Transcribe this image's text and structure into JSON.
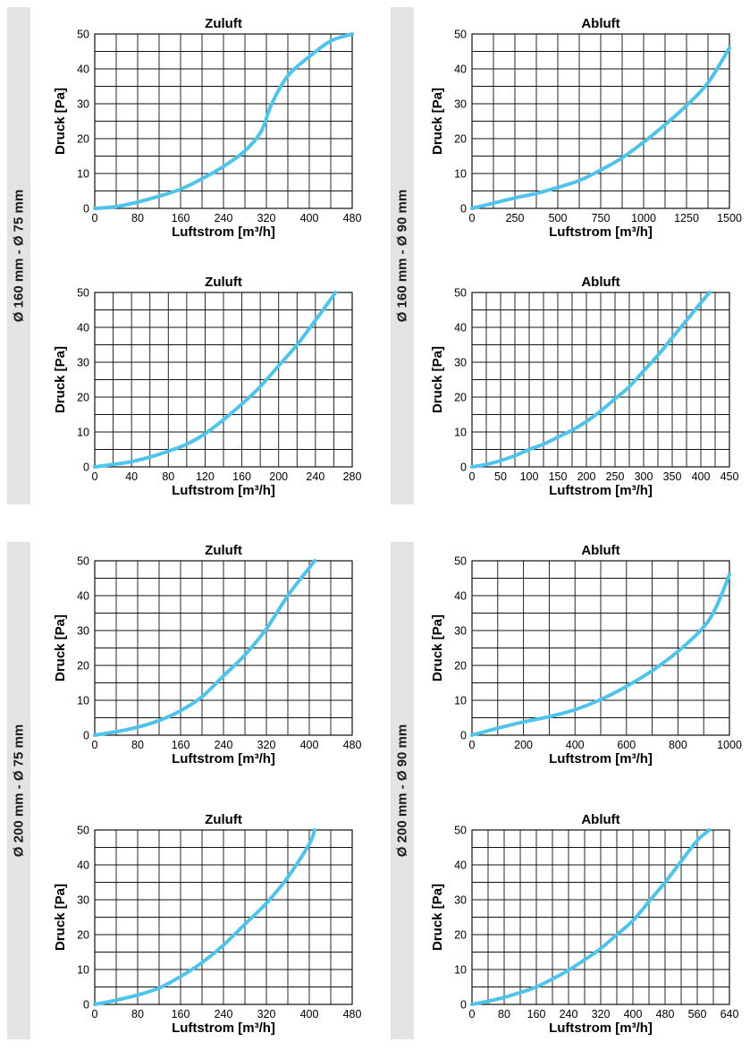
{
  "colors": {
    "curve": "#4fc3ea",
    "band": "#e3e3e5",
    "grid": "#111111"
  },
  "groups": [
    {
      "label": "Ø 160 mm - Ø 75 mm"
    },
    {
      "label": "Ø 160 mm - Ø 90 mm"
    },
    {
      "label": "Ø 200 mm - Ø 75 mm"
    },
    {
      "label": "Ø 200 mm - Ø 90 mm"
    }
  ],
  "chart_data": [
    {
      "type": "line",
      "title": "Zuluft",
      "xlabel": "Luftstrom [m³/h]",
      "ylabel": "Druck [Pa]",
      "xlim": [
        0,
        480
      ],
      "ylim": [
        0,
        50
      ],
      "grid": true,
      "xticks": [
        0,
        80,
        160,
        240,
        320,
        400,
        480
      ],
      "yticks": [
        0,
        10,
        20,
        30,
        40,
        50
      ],
      "x": [
        0,
        40,
        80,
        120,
        160,
        200,
        240,
        280,
        310,
        330,
        360,
        400,
        440,
        480
      ],
      "y": [
        0,
        0.5,
        1.8,
        3.5,
        5.5,
        8.5,
        12,
        16.5,
        22,
        30,
        38,
        43.5,
        48,
        50
      ]
    },
    {
      "type": "line",
      "title": "Abluft",
      "xlabel": "Luftstrom [m³/h]",
      "ylabel": "Druck [Pa]",
      "xlim": [
        0,
        1500
      ],
      "ylim": [
        0,
        50
      ],
      "grid": true,
      "xticks": [
        0,
        250,
        500,
        750,
        1000,
        1250,
        1500
      ],
      "yticks": [
        0,
        10,
        20,
        30,
        40,
        50
      ],
      "x": [
        0,
        125,
        250,
        375,
        500,
        625,
        750,
        875,
        1000,
        1125,
        1250,
        1375,
        1500
      ],
      "y": [
        0,
        1.5,
        3,
        4.3,
        6,
        8,
        11,
        14.5,
        19,
        24,
        29.5,
        36,
        46
      ]
    },
    {
      "type": "line",
      "title": "Zuluft",
      "xlabel": "Luftstrom [m³/h]",
      "ylabel": "Druck [Pa]",
      "xlim": [
        0,
        280
      ],
      "ylim": [
        0,
        50
      ],
      "grid": true,
      "xticks": [
        0,
        40,
        80,
        120,
        160,
        200,
        240,
        280
      ],
      "yticks": [
        0,
        10,
        20,
        30,
        40,
        50
      ],
      "x": [
        0,
        20,
        40,
        60,
        80,
        100,
        120,
        140,
        160,
        180,
        200,
        220,
        240,
        262
      ],
      "y": [
        0,
        0.7,
        1.5,
        2.8,
        4.5,
        6.5,
        9.5,
        13.5,
        18,
        23,
        29,
        35,
        42,
        50
      ]
    },
    {
      "type": "line",
      "title": "Abluft",
      "xlabel": "Luftstrom [m³/h]",
      "ylabel": "Druck [Pa]",
      "xlim": [
        0,
        450
      ],
      "ylim": [
        0,
        50
      ],
      "grid": true,
      "xticks": [
        0,
        50,
        100,
        150,
        200,
        250,
        300,
        350,
        400,
        450
      ],
      "yticks": [
        0,
        10,
        20,
        30,
        40,
        50
      ],
      "x": [
        0,
        25,
        50,
        75,
        100,
        125,
        150,
        175,
        200,
        225,
        250,
        275,
        300,
        325,
        350,
        375,
        400,
        415
      ],
      "y": [
        0,
        0.7,
        1.8,
        3.2,
        5,
        6.5,
        8.5,
        10.5,
        13,
        16,
        19.5,
        23,
        27.5,
        32,
        37,
        42,
        47,
        50
      ]
    },
    {
      "type": "line",
      "title": "Zuluft",
      "xlabel": "Luftstrom [m³/h]",
      "ylabel": "Druck [Pa]",
      "xlim": [
        0,
        480
      ],
      "ylim": [
        0,
        50
      ],
      "grid": true,
      "xticks": [
        0,
        80,
        160,
        240,
        320,
        400,
        480
      ],
      "yticks": [
        0,
        10,
        20,
        30,
        40,
        50
      ],
      "x": [
        0,
        40,
        80,
        120,
        160,
        200,
        240,
        280,
        320,
        360,
        400,
        410
      ],
      "y": [
        0,
        1,
        2.3,
        4.2,
        7,
        11,
        17,
        23,
        30.5,
        40,
        48,
        50
      ]
    },
    {
      "type": "line",
      "title": "Abluft",
      "xlabel": "Luftstrom [m³/h]",
      "ylabel": "Druck [Pa]",
      "xlim": [
        0,
        1000
      ],
      "ylim": [
        0,
        50
      ],
      "grid": true,
      "xticks": [
        0,
        200,
        400,
        600,
        800,
        1000
      ],
      "yticks": [
        0,
        10,
        20,
        30,
        40,
        50
      ],
      "x": [
        0,
        100,
        200,
        300,
        400,
        500,
        600,
        700,
        800,
        900,
        950,
        1000
      ],
      "y": [
        0,
        2,
        3.8,
        5.3,
        7.3,
        10.2,
        14,
        18.5,
        24,
        31,
        37,
        46
      ]
    },
    {
      "type": "line",
      "title": "Zuluft",
      "xlabel": "Luftstrom [m³/h]",
      "ylabel": "Druck [Pa]",
      "xlim": [
        0,
        480
      ],
      "ylim": [
        0,
        50
      ],
      "grid": true,
      "xticks": [
        0,
        80,
        160,
        240,
        320,
        400,
        480
      ],
      "yticks": [
        0,
        10,
        20,
        30,
        40,
        50
      ],
      "x": [
        0,
        40,
        80,
        120,
        160,
        200,
        240,
        280,
        320,
        360,
        400,
        410
      ],
      "y": [
        0,
        1.2,
        2.7,
        4.7,
        8,
        12,
        17,
        23,
        29,
        36.5,
        46,
        50
      ]
    },
    {
      "type": "line",
      "title": "Abluft",
      "xlabel": "Luftstrom [m³/h]",
      "ylabel": "Druck [Pa]",
      "xlim": [
        0,
        640
      ],
      "ylim": [
        0,
        50
      ],
      "grid": true,
      "xticks": [
        0,
        80,
        160,
        240,
        320,
        400,
        480,
        560,
        640
      ],
      "yticks": [
        0,
        10,
        20,
        30,
        40,
        50
      ],
      "x": [
        0,
        40,
        80,
        120,
        160,
        200,
        240,
        280,
        320,
        360,
        400,
        440,
        480,
        520,
        560,
        590
      ],
      "y": [
        0,
        0.9,
        2,
        3.4,
        5,
        7.3,
        9.8,
        12.8,
        16,
        20,
        24,
        29.5,
        35,
        41,
        47,
        50
      ]
    }
  ]
}
